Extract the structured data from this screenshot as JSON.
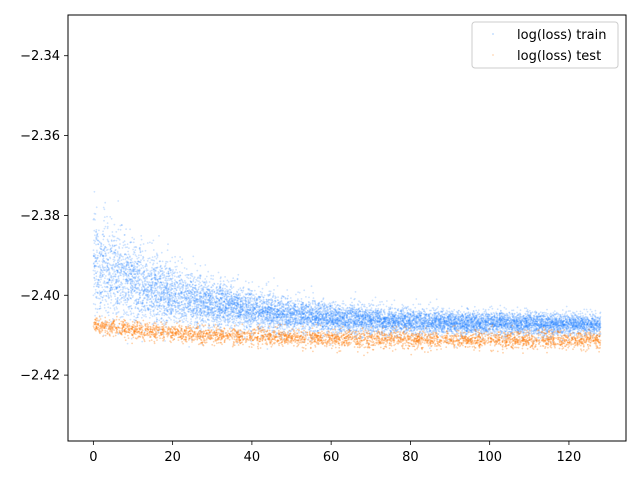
{
  "chart_data": {
    "type": "scatter",
    "title": "",
    "xlabel": "",
    "ylabel": "",
    "xlim": [
      -6.4,
      134.4
    ],
    "ylim": [
      -2.4365,
      -2.3298
    ],
    "grid": false,
    "legend_position": "top-right",
    "x_ticks": [
      0,
      20,
      40,
      60,
      80,
      100,
      120
    ],
    "x_tick_labels": [
      "0",
      "20",
      "40",
      "60",
      "80",
      "100",
      "120"
    ],
    "y_ticks": [
      -2.42,
      -2.4,
      -2.38,
      -2.36,
      -2.34
    ],
    "y_tick_labels": [
      "−2.42",
      "−2.40",
      "−2.38",
      "−2.36",
      "−2.34"
    ],
    "series": [
      {
        "name": "log(loss) train",
        "color": "#1f7fff",
        "x_range": [
          0,
          128
        ],
        "mean_start": -2.392,
        "mean_end": -2.4075,
        "spread_start": 0.0065,
        "spread_end": 0.0013
      },
      {
        "name": "log(loss) test",
        "color": "#ff7f0e",
        "x_range": [
          0,
          128
        ],
        "mean_start": -2.4075,
        "mean_end": -2.4113,
        "spread_start": 0.0011,
        "spread_end": 0.0011
      }
    ]
  }
}
